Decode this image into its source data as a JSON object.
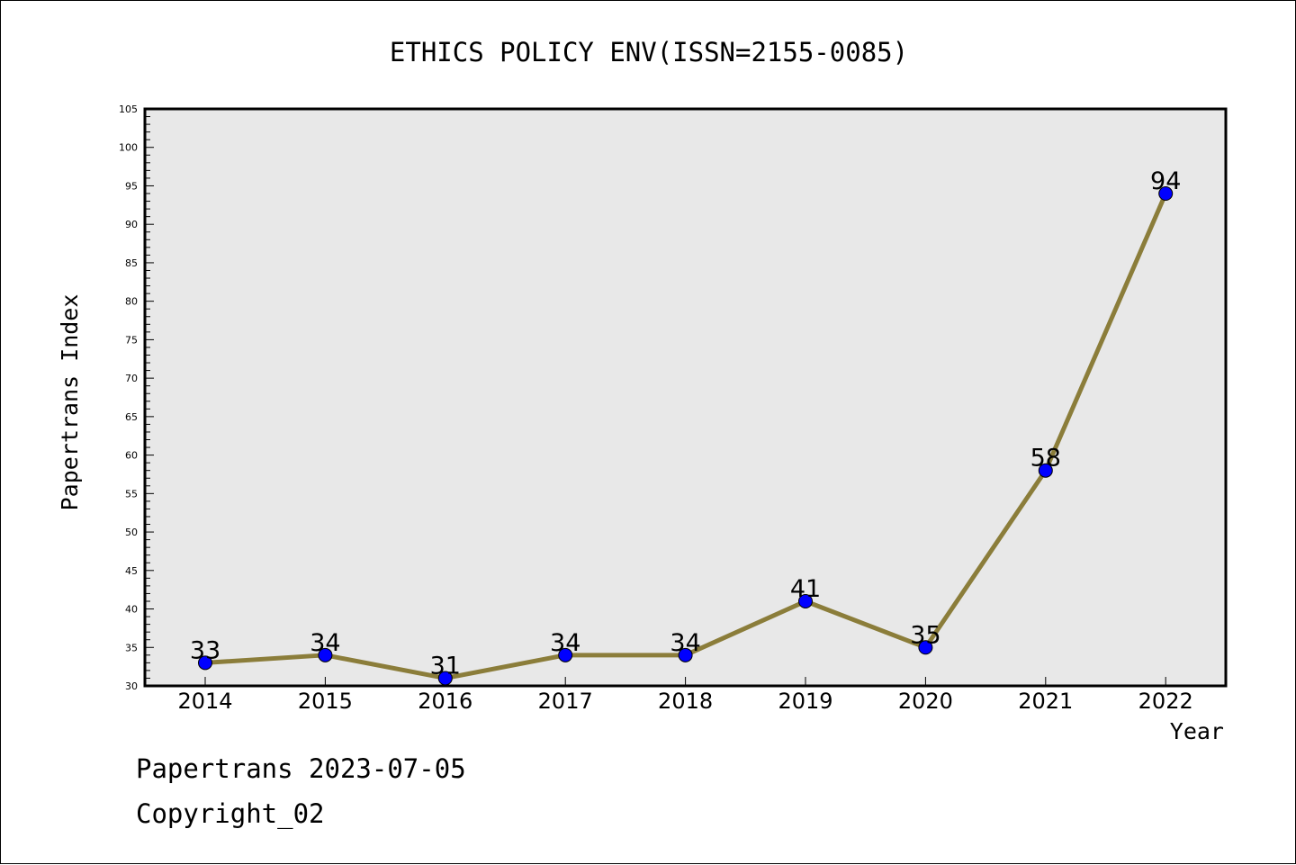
{
  "chart_data": {
    "type": "line",
    "title": "ETHICS POLICY ENV(ISSN=2155-0085)",
    "xlabel": "Year",
    "ylabel": "Papertrans Index",
    "categories": [
      "2014",
      "2015",
      "2016",
      "2017",
      "2018",
      "2019",
      "2020",
      "2021",
      "2022"
    ],
    "series": [
      {
        "values": [
          33,
          34,
          31,
          34,
          34,
          41,
          35,
          58,
          94
        ]
      }
    ],
    "ylim": [
      30,
      105
    ],
    "ytick_step": 5,
    "yminor_step": 1,
    "grid": false,
    "colors": {
      "line": "#8b7d3a",
      "marker": "#0000ff",
      "plot_background": "#e8e8e8"
    }
  },
  "footer": {
    "line1": "Papertrans 2023-07-05",
    "line2": "Copyright_02"
  }
}
